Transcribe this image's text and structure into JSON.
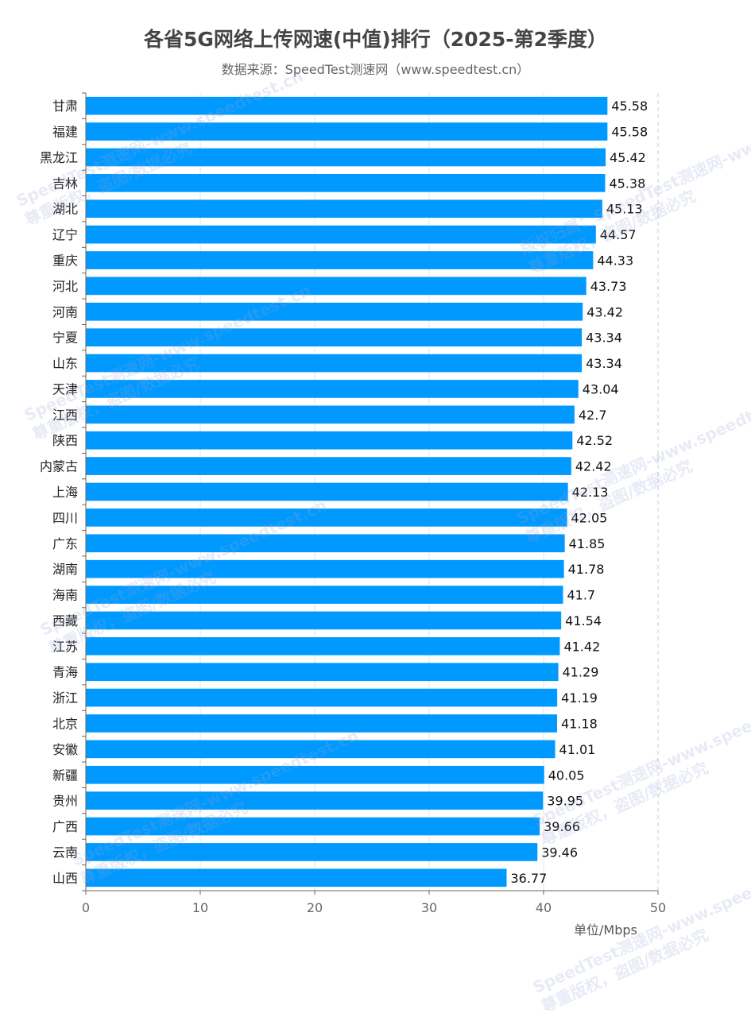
{
  "chart_data": {
    "type": "bar",
    "orientation": "horizontal",
    "title": "各省5G网络上传网速(中值)排行（2025-第2季度）",
    "subtitle": "数据来源：SpeedTest测速网（www.speedtest.cn）",
    "xlabel": "单位/Mbps",
    "xlim": [
      0,
      50
    ],
    "xticks": [
      0,
      10,
      20,
      30,
      40,
      50
    ],
    "categories": [
      "甘肃",
      "福建",
      "黑龙江",
      "吉林",
      "湖北",
      "辽宁",
      "重庆",
      "河北",
      "河南",
      "宁夏",
      "山东",
      "天津",
      "江西",
      "陕西",
      "内蒙古",
      "上海",
      "四川",
      "广东",
      "湖南",
      "海南",
      "西藏",
      "江苏",
      "青海",
      "浙江",
      "北京",
      "安徽",
      "新疆",
      "贵州",
      "广西",
      "云南",
      "山西"
    ],
    "values": [
      45.58,
      45.58,
      45.42,
      45.38,
      45.13,
      44.57,
      44.33,
      43.73,
      43.42,
      43.34,
      43.34,
      43.04,
      42.7,
      42.52,
      42.42,
      42.13,
      42.05,
      41.85,
      41.78,
      41.7,
      41.54,
      41.42,
      41.29,
      41.19,
      41.18,
      41.01,
      40.05,
      39.95,
      39.66,
      39.46,
      36.77
    ],
    "value_labels": [
      "45.58",
      "45.58",
      "45.42",
      "45.38",
      "45.13",
      "44.57",
      "44.33",
      "43.73",
      "43.42",
      "43.34",
      "43.34",
      "43.04",
      "42.7",
      "42.52",
      "42.42",
      "42.13",
      "42.05",
      "41.85",
      "41.78",
      "41.7",
      "41.54",
      "41.42",
      "41.29",
      "41.19",
      "41.18",
      "41.01",
      "40.05",
      "39.95",
      "39.66",
      "39.46",
      "36.77"
    ],
    "bar_color": "#0099ff",
    "grid": true
  },
  "watermarks": [
    "SpeedTest测速网-www.speedtest.cn",
    "尊重版权，盗图/数据必究",
    "版权归属：SpeedTest测速网-www.speedtest.cn"
  ]
}
